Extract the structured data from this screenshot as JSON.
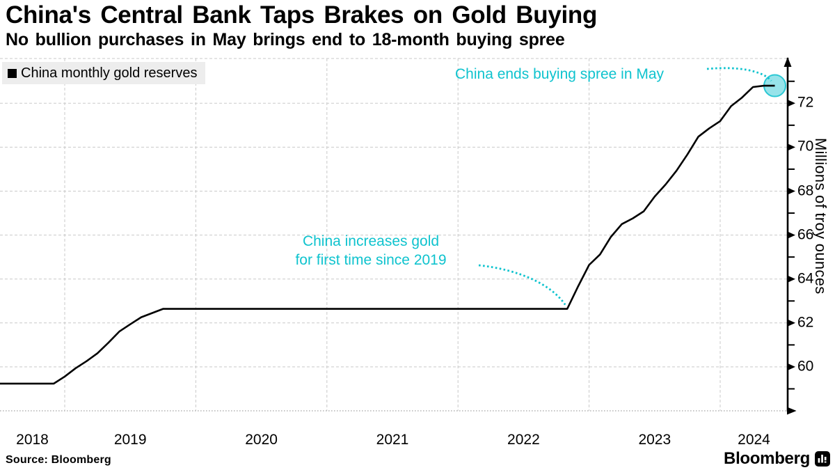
{
  "header": {
    "title": "China's Central Bank Taps Brakes on Gold Buying",
    "subtitle": "No bullion purchases in May brings end to 18-month buying spree"
  },
  "legend": {
    "label": "China monthly gold reserves",
    "swatch_color": "#000000"
  },
  "annotations": {
    "increase": {
      "line1": "China increases gold",
      "line2": "for first time since 2019",
      "color": "#0fc3ce",
      "anchor_date": "2022-10"
    },
    "end": {
      "text": "China ends buying spree in May",
      "color": "#0fc3ce",
      "anchor_date": "2024-05"
    }
  },
  "axis": {
    "y_title": "Millions of troy ounces",
    "y_major_ticks": [
      72,
      70,
      68,
      66,
      64,
      62,
      60
    ],
    "y_minor_ticks": [
      73,
      71,
      69,
      67,
      65,
      63,
      61,
      59
    ],
    "x_labels": [
      "2018",
      "2019",
      "2020",
      "2021",
      "2022",
      "2023",
      "2024"
    ],
    "grid_color": "#c9c9c9",
    "axis_color": "#000000"
  },
  "marker": {
    "fill": "#97e3ea",
    "stroke": "#2cc8d4"
  },
  "footer": {
    "source": "Source: Bloomberg",
    "brand": "Bloomberg"
  },
  "chart_data": {
    "type": "line",
    "title": "China's Central Bank Taps Brakes on Gold Buying",
    "series_name": "China monthly gold reserves",
    "ylabel": "Millions of troy ounces",
    "ylim": [
      58,
      74
    ],
    "x_range": [
      "2018-06",
      "2024-06"
    ],
    "line_color": "#000000",
    "grid": true,
    "legend_position": "top-left",
    "points": [
      [
        "2018-06",
        59.24
      ],
      [
        "2018-11",
        59.24
      ],
      [
        "2018-12",
        59.56
      ],
      [
        "2019-01",
        59.94
      ],
      [
        "2019-02",
        60.26
      ],
      [
        "2019-03",
        60.62
      ],
      [
        "2019-04",
        61.1
      ],
      [
        "2019-05",
        61.61
      ],
      [
        "2019-06",
        61.94
      ],
      [
        "2019-07",
        62.26
      ],
      [
        "2019-08",
        62.45
      ],
      [
        "2019-09",
        62.64
      ],
      [
        "2022-10",
        62.64
      ],
      [
        "2022-11",
        63.67
      ],
      [
        "2022-12",
        64.64
      ],
      [
        "2023-01",
        65.12
      ],
      [
        "2023-02",
        65.92
      ],
      [
        "2023-03",
        66.5
      ],
      [
        "2023-04",
        66.76
      ],
      [
        "2023-05",
        67.08
      ],
      [
        "2023-06",
        67.75
      ],
      [
        "2023-07",
        68.3
      ],
      [
        "2023-08",
        68.93
      ],
      [
        "2023-09",
        69.67
      ],
      [
        "2023-10",
        70.48
      ],
      [
        "2023-11",
        70.86
      ],
      [
        "2023-12",
        71.19
      ],
      [
        "2024-01",
        71.87
      ],
      [
        "2024-02",
        72.26
      ],
      [
        "2024-03",
        72.74
      ],
      [
        "2024-04",
        72.8
      ],
      [
        "2024-05",
        72.8
      ]
    ]
  }
}
